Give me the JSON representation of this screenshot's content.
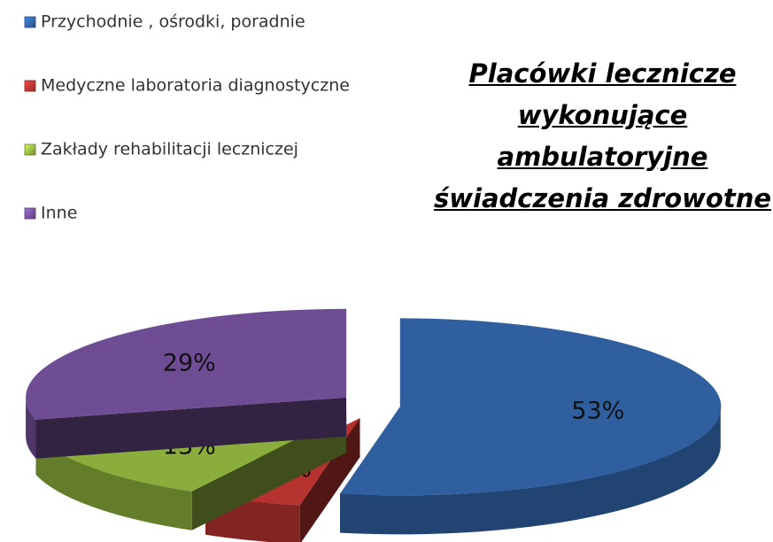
{
  "chart_data": {
    "type": "pie",
    "title": "Placówki lecznicze wykonujące ambulatoryjne świadczenia zdrowotne",
    "categories": [
      "Przychodnie , ośrodki,  poradnie",
      "Medyczne laboratoria diagnostyczne",
      "Zakłady rehabilitacji leczniczej",
      "Inne"
    ],
    "values": [
      53,
      5,
      13,
      29
    ],
    "value_labels": [
      "53%",
      "5%",
      "13%",
      "29%"
    ],
    "colors": [
      "#2f5f9f",
      "#b5322f",
      "#8bad3c",
      "#6e4d95"
    ],
    "legend": "top-left"
  }
}
